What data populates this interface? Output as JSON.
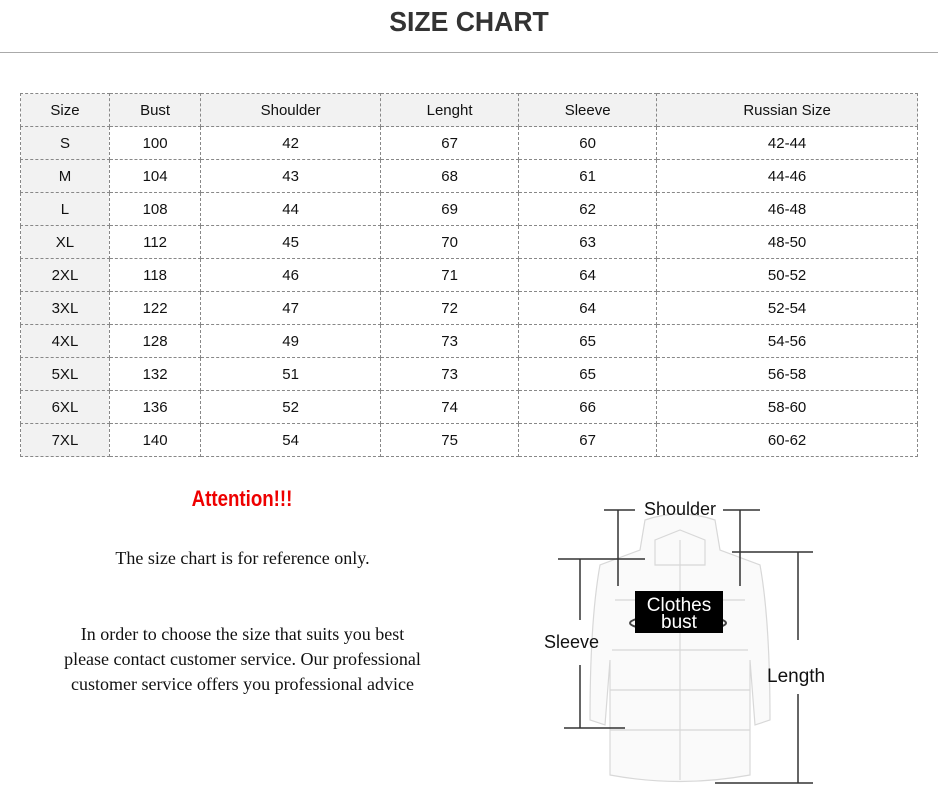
{
  "title": "SIZE CHART",
  "table": {
    "headers": [
      "Size",
      "Bust",
      "Shoulder",
      "Lenght",
      "Sleeve",
      "Russian Size"
    ],
    "rows": [
      [
        "S",
        "100",
        "42",
        "67",
        "60",
        "42-44"
      ],
      [
        "M",
        "104",
        "43",
        "68",
        "61",
        "44-46"
      ],
      [
        "L",
        "108",
        "44",
        "69",
        "62",
        "46-48"
      ],
      [
        "XL",
        "112",
        "45",
        "70",
        "63",
        "48-50"
      ],
      [
        "2XL",
        "118",
        "46",
        "71",
        "64",
        "50-52"
      ],
      [
        "3XL",
        "122",
        "47",
        "72",
        "64",
        "52-54"
      ],
      [
        "4XL",
        "128",
        "49",
        "73",
        "65",
        "54-56"
      ],
      [
        "5XL",
        "132",
        "51",
        "73",
        "65",
        "56-58"
      ],
      [
        "6XL",
        "136",
        "52",
        "74",
        "66",
        "58-60"
      ],
      [
        "7XL",
        "140",
        "54",
        "75",
        "67",
        "60-62"
      ]
    ]
  },
  "attention": "Attention!!!",
  "note1": "The size chart is for reference only.",
  "note2": [
    "In order to choose the size that suits you best",
    "please contact customer service. Our professional",
    "customer service offers you professional advice"
  ],
  "diagram": {
    "shoulder": "Shoulder",
    "sleeve": "Sleeve",
    "length": "Length",
    "bust_line1": "Clothes",
    "bust_line2": "bust"
  },
  "colors": {
    "attention": "#ee0000",
    "header_bg": "#f2f2f2"
  }
}
